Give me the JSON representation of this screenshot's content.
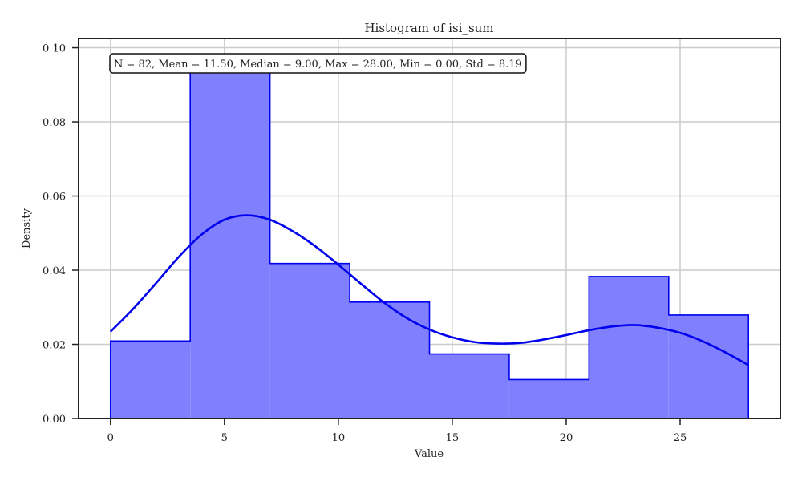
{
  "chart_data": {
    "type": "histogram",
    "title": "Histogram of isi_sum",
    "xlabel": "Value",
    "ylabel": "Density",
    "xlim": [
      -1.4,
      29.4
    ],
    "ylim": [
      0.0,
      0.1025
    ],
    "x_ticks": [
      0,
      5,
      10,
      15,
      20,
      25
    ],
    "y_ticks": [
      0.0,
      0.02,
      0.04,
      0.06,
      0.08,
      0.1
    ],
    "x_tick_labels": [
      "0",
      "5",
      "10",
      "15",
      "20",
      "25"
    ],
    "y_tick_labels": [
      "0.00",
      "0.02",
      "0.04",
      "0.06",
      "0.08",
      "0.10"
    ],
    "grid": true,
    "bins": [
      {
        "x0": 0.0,
        "x1": 3.5,
        "density": 0.0209
      },
      {
        "x0": 3.5,
        "x1": 7.0,
        "density": 0.0941
      },
      {
        "x0": 7.0,
        "x1": 10.5,
        "density": 0.0418
      },
      {
        "x0": 10.5,
        "x1": 14.0,
        "density": 0.0314
      },
      {
        "x0": 14.0,
        "x1": 17.5,
        "density": 0.0174
      },
      {
        "x0": 17.5,
        "x1": 21.0,
        "density": 0.0105
      },
      {
        "x0": 21.0,
        "x1": 24.5,
        "density": 0.0383
      },
      {
        "x0": 24.5,
        "x1": 28.0,
        "density": 0.0279
      }
    ],
    "kde": {
      "x": [
        0,
        1,
        2,
        3,
        4,
        5,
        6,
        7,
        8,
        9,
        10,
        11,
        12,
        13,
        14,
        15,
        16,
        17,
        18,
        19,
        20,
        21,
        22,
        23,
        24,
        25,
        26,
        27,
        28
      ],
      "y": [
        0.0234,
        0.0296,
        0.0365,
        0.0436,
        0.0496,
        0.0536,
        0.0548,
        0.0536,
        0.0505,
        0.0464,
        0.0415,
        0.0363,
        0.0313,
        0.0271,
        0.024,
        0.0219,
        0.0206,
        0.0202,
        0.0204,
        0.0213,
        0.0225,
        0.0238,
        0.0248,
        0.0252,
        0.0245,
        0.0231,
        0.0208,
        0.0178,
        0.0144
      ]
    },
    "stats_text": "N = 82, Mean = 11.50, Median = 9.00, Max = 28.00, Min = 0.00, Std = 8.19",
    "colors": {
      "fill": "#8080ff",
      "edge": "#0000ee",
      "kde": "#0000ee",
      "grid": "#cccccc",
      "axes": "#222222"
    }
  }
}
